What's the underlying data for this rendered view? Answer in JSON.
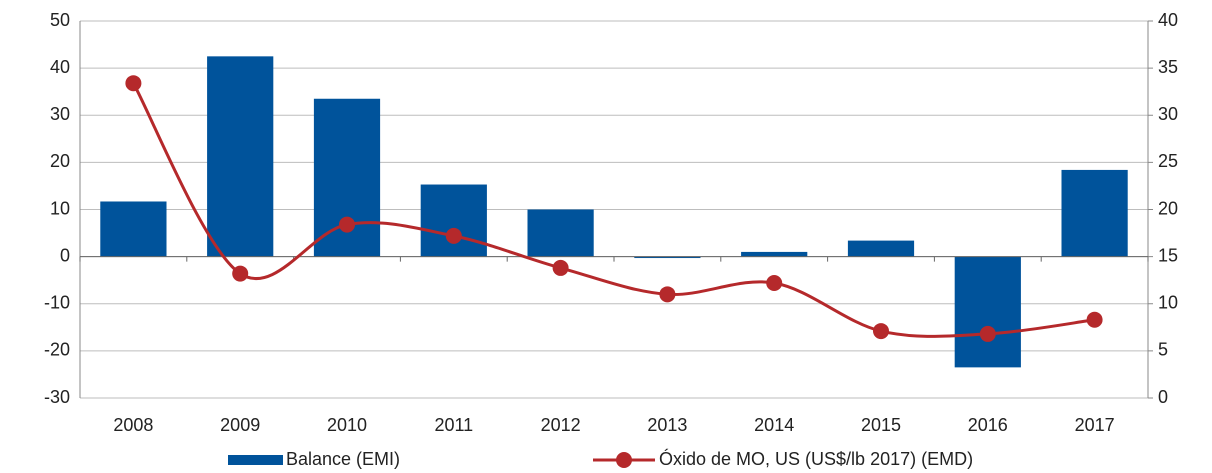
{
  "chart_data": {
    "type": "bar-line",
    "categories": [
      "2008",
      "2009",
      "2010",
      "2011",
      "2012",
      "2013",
      "2014",
      "2015",
      "2016",
      "2017"
    ],
    "series": [
      {
        "name": "Balance (EMI)",
        "type": "bar",
        "color": "#00539b",
        "axis": "y",
        "values": [
          11.7,
          42.5,
          33.5,
          15.3,
          10,
          -0.3,
          1,
          3.4,
          -23.5,
          18.4
        ]
      },
      {
        "name": "Óxido de MO, US (US$/lb 2017) (EMD)",
        "type": "line",
        "color": "#b5292b",
        "axis": "y2",
        "smooth": true,
        "values": [
          33.4,
          13.2,
          18.4,
          17.2,
          13.8,
          11.0,
          12.2,
          7.1,
          6.8,
          8.3
        ]
      }
    ],
    "ylim": [
      -30,
      50
    ],
    "yticks": [
      -30,
      -20,
      -10,
      0,
      10,
      20,
      30,
      40,
      50
    ],
    "y2lim": [
      0,
      40
    ],
    "y2ticks": [
      0,
      5,
      10,
      15,
      20,
      25,
      30,
      35,
      40
    ],
    "grid": true,
    "legend": "bottom"
  }
}
